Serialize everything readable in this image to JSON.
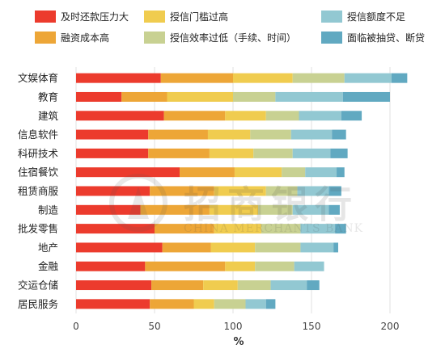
{
  "chart_data": {
    "type": "bar",
    "orientation": "horizontal",
    "stacked": true,
    "xlabel": "%",
    "xlim": [
      0,
      220
    ],
    "xticks": [
      0,
      50,
      100,
      150,
      200
    ],
    "grid": "vertical",
    "legend_position": "top",
    "categories": [
      "文娱体育",
      "教育",
      "建筑",
      "信息软件",
      "科研技术",
      "住宿餐饮",
      "租赁商服",
      "制造",
      "批发零售",
      "地产",
      "金融",
      "交运仓储",
      "居民服务"
    ],
    "series": [
      {
        "name": "及时还款压力大",
        "color": "#ec3b2d",
        "values": [
          54,
          29,
          56,
          46,
          46,
          66,
          47,
          41,
          50,
          55,
          44,
          48,
          47
        ]
      },
      {
        "name": "融资成本高",
        "color": "#eda637",
        "values": [
          46,
          29,
          39,
          38,
          39,
          35,
          41,
          44,
          38,
          31,
          51,
          33,
          28
        ]
      },
      {
        "name": "授信门槛过高",
        "color": "#f0cc4f",
        "values": [
          38,
          42,
          26,
          27,
          28,
          30,
          33,
          31,
          30,
          28,
          19,
          22,
          13
        ]
      },
      {
        "name": "授信效率过低（手续、时间）",
        "color": "#c8d192",
        "values": [
          33,
          27,
          21,
          26,
          25,
          15,
          20,
          22,
          25,
          29,
          25,
          21,
          20
        ]
      },
      {
        "name": "授信额度不足",
        "color": "#92c8d2",
        "values": [
          30,
          43,
          27,
          26,
          24,
          20,
          20,
          23,
          22,
          21,
          19,
          23,
          13
        ]
      },
      {
        "name": "面临被抽贷、断贷",
        "color": "#61a9c1",
        "values": [
          10,
          30,
          13,
          9,
          11,
          5,
          8,
          7,
          7,
          3,
          0,
          8,
          6
        ]
      }
    ]
  },
  "watermark": {
    "chinese": "招商银行",
    "english": "CHINA MERCHANTS BANK"
  }
}
